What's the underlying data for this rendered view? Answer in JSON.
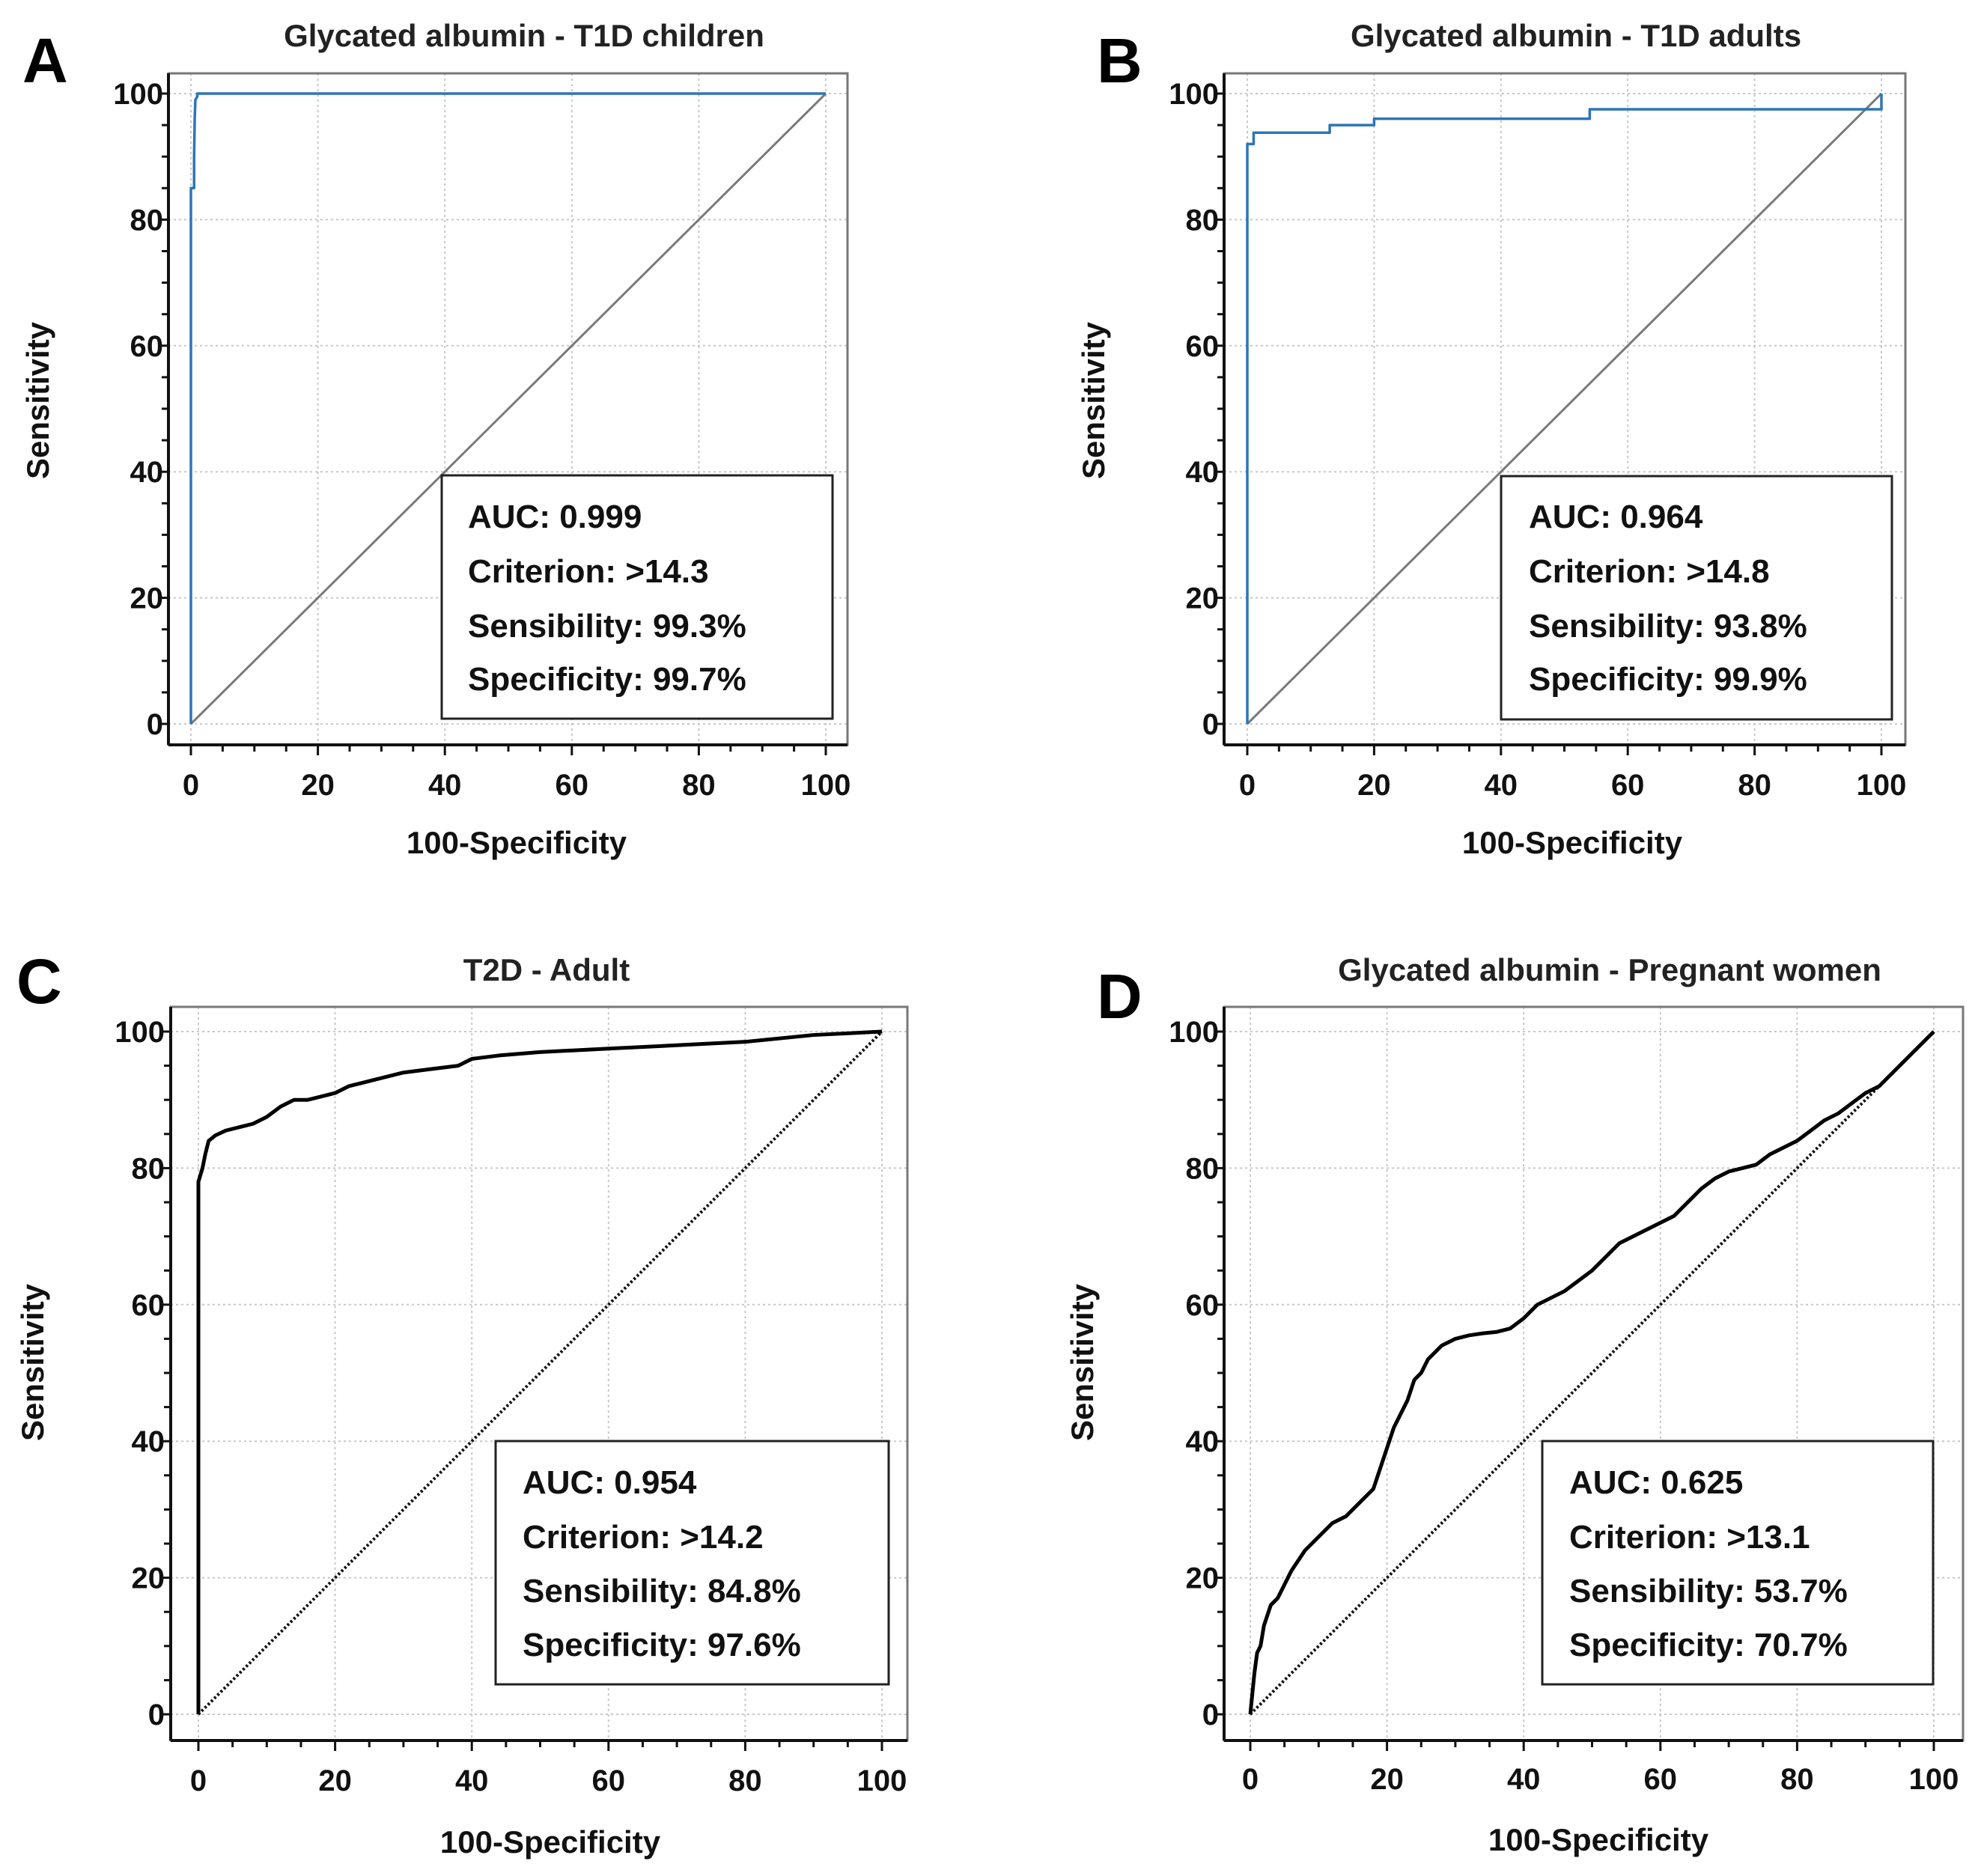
{
  "chart_data": [
    {
      "panel": "A",
      "type": "line",
      "title": "Glycated albumin - T1D children",
      "xlabel": "100-Specificity",
      "ylabel": "Sensitivity",
      "xlim": [
        0,
        100
      ],
      "ylim": [
        0,
        100
      ],
      "xticks": [
        0,
        20,
        40,
        60,
        80,
        100
      ],
      "yticks": [
        0,
        20,
        40,
        60,
        80,
        100
      ],
      "grid": true,
      "line_color": "#2e75b6",
      "diagonal": "solid",
      "series": [
        {
          "name": "ROC",
          "x": [
            0,
            0,
            0.5,
            0.5,
            0.6,
            0.7,
            1,
            1,
            100
          ],
          "y": [
            0,
            85,
            85,
            90,
            96,
            99,
            99.5,
            100,
            100
          ]
        },
        {
          "name": "Reference",
          "x": [
            0,
            100
          ],
          "y": [
            0,
            100
          ]
        }
      ],
      "stats": {
        "auc": "AUC: 0.999",
        "criterion": "Criterion: >14.3",
        "sensibility": "Sensibility: 99.3%",
        "specificity": "Specificity: 99.7%"
      }
    },
    {
      "panel": "B",
      "type": "line",
      "title": "Glycated albumin - T1D adults",
      "xlabel": "100-Specificity",
      "ylabel": "Sensitivity",
      "xlim": [
        0,
        100
      ],
      "ylim": [
        0,
        100
      ],
      "xticks": [
        0,
        20,
        40,
        60,
        80,
        100
      ],
      "yticks": [
        0,
        20,
        40,
        60,
        80,
        100
      ],
      "grid": true,
      "line_color": "#2e75b6",
      "diagonal": "solid",
      "series": [
        {
          "name": "ROC",
          "x": [
            0,
            0,
            1,
            1,
            13,
            13,
            20,
            20,
            54,
            54,
            100,
            100
          ],
          "y": [
            0,
            92,
            92,
            93.8,
            93.8,
            95,
            95,
            96,
            96,
            97.5,
            97.5,
            100
          ]
        },
        {
          "name": "Reference",
          "x": [
            0,
            100
          ],
          "y": [
            0,
            100
          ]
        }
      ],
      "stats": {
        "auc": "AUC: 0.964",
        "criterion": "Criterion: >14.8",
        "sensibility": "Sensibility: 93.8%",
        "specificity": "Specificity: 99.9%"
      }
    },
    {
      "panel": "C",
      "type": "line",
      "title": "T2D - Adult",
      "xlabel": "100-Specificity",
      "ylabel": "Sensitivity",
      "xlim": [
        0,
        100
      ],
      "ylim": [
        0,
        100
      ],
      "xticks": [
        0,
        20,
        40,
        60,
        80,
        100
      ],
      "yticks": [
        0,
        20,
        40,
        60,
        80,
        100
      ],
      "grid": true,
      "line_color": "#000000",
      "diagonal": "dotted",
      "series": [
        {
          "name": "ROC",
          "x": [
            0,
            0,
            0.3,
            0.6,
            1,
            1.5,
            2.5,
            4,
            6,
            8,
            10,
            12,
            14,
            16,
            18,
            20,
            22,
            24,
            26,
            30,
            34,
            38,
            40,
            44,
            50,
            60,
            70,
            80,
            90,
            100
          ],
          "y": [
            0,
            78,
            79,
            80,
            82,
            84,
            84.8,
            85.5,
            86,
            86.5,
            87.5,
            89,
            90,
            90,
            90.5,
            91,
            92,
            92.5,
            93,
            94,
            94.5,
            95,
            96,
            96.5,
            97,
            97.5,
            98,
            98.5,
            99.5,
            100
          ]
        },
        {
          "name": "Reference",
          "x": [
            0,
            100
          ],
          "y": [
            0,
            100
          ]
        }
      ],
      "stats": {
        "auc": "AUC: 0.954",
        "criterion": "Criterion: >14.2",
        "sensibility": "Sensibility: 84.8%",
        "specificity": "Specificity: 97.6%"
      }
    },
    {
      "panel": "D",
      "type": "line",
      "title": "Glycated albumin - Pregnant women",
      "xlabel": "100-Specificity",
      "ylabel": "Sensitivity",
      "xlim": [
        0,
        100
      ],
      "ylim": [
        0,
        100
      ],
      "xticks": [
        0,
        20,
        40,
        60,
        80,
        100
      ],
      "yticks": [
        0,
        20,
        40,
        60,
        80,
        100
      ],
      "grid": true,
      "line_color": "#000000",
      "diagonal": "dotted",
      "series": [
        {
          "name": "ROC",
          "x": [
            0,
            0.3,
            0.6,
            1,
            1.5,
            2,
            3,
            4,
            5,
            6,
            8,
            10,
            12,
            14,
            16,
            18,
            19,
            20,
            21,
            22,
            23,
            24,
            25,
            26,
            27,
            28,
            30,
            32,
            34,
            36,
            38,
            40,
            42,
            44,
            46,
            48,
            50,
            52,
            54,
            56,
            58,
            60,
            62,
            64,
            66,
            68,
            70,
            72,
            74,
            76,
            78,
            80,
            82,
            84,
            86,
            88,
            90,
            92,
            94,
            96,
            98,
            100
          ],
          "y": [
            0,
            3,
            6,
            9,
            10,
            13,
            16,
            17,
            19,
            21,
            24,
            26,
            28,
            29,
            31,
            33,
            36,
            39,
            42,
            44,
            46,
            49,
            50,
            52,
            53,
            54,
            55,
            55.5,
            55.8,
            56,
            56.5,
            58,
            60,
            61,
            62,
            63.5,
            65,
            67,
            69,
            70,
            71,
            72,
            73,
            75,
            77,
            78.5,
            79.5,
            80,
            80.5,
            82,
            83,
            84,
            85.5,
            87,
            88,
            89.5,
            91,
            92,
            94,
            96,
            98,
            100
          ]
        },
        {
          "name": "Reference",
          "x": [
            0,
            100
          ],
          "y": [
            0,
            100
          ]
        }
      ],
      "stats": {
        "auc": "AUC: 0.625",
        "criterion": "Criterion: >13.1",
        "sensibility": "Sensibility: 53.7%",
        "specificity": "Specificity: 70.7%"
      }
    }
  ]
}
